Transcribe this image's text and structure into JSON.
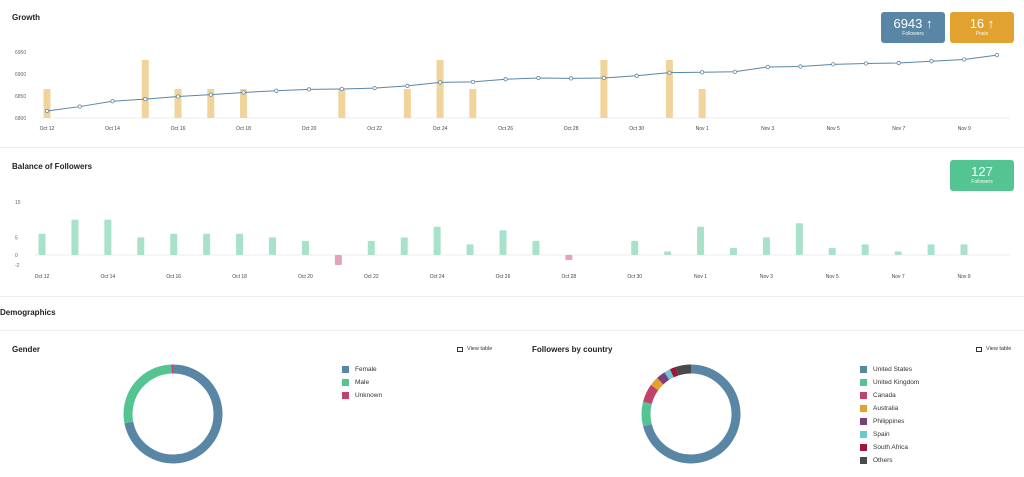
{
  "growth": {
    "title": "Growth",
    "followers_badge": {
      "value": "6943",
      "label": "Followers",
      "arrow": "↑",
      "color": "#5a86a5"
    },
    "posts_badge": {
      "value": "16",
      "label": "Posts",
      "arrow": "↑",
      "color": "#e1a22f"
    }
  },
  "balance": {
    "title": "Balance of Followers",
    "badge": {
      "value": "127",
      "label": "Followers",
      "color": "#55c493"
    }
  },
  "demographics": {
    "title": "Demographics"
  },
  "gender": {
    "title": "Gender",
    "view_table": "View table",
    "legend": [
      {
        "label": "Female",
        "color": "#5a86a5"
      },
      {
        "label": "Male",
        "color": "#55c493"
      },
      {
        "label": "Unknown",
        "color": "#c0436c"
      }
    ]
  },
  "country": {
    "title": "Followers by country",
    "view_table": "View table",
    "legend": [
      {
        "label": "United States",
        "color": "#5a86a5"
      },
      {
        "label": "United Kingdom",
        "color": "#55c493"
      },
      {
        "label": "Canada",
        "color": "#c0436c"
      },
      {
        "label": "Australia",
        "color": "#e1a22f"
      },
      {
        "label": "Philippines",
        "color": "#7b3f7e"
      },
      {
        "label": "Spain",
        "color": "#6cc7cf"
      },
      {
        "label": "South Africa",
        "color": "#a0163a"
      },
      {
        "label": "Others",
        "color": "#4a4a4a"
      }
    ]
  },
  "chart_data": [
    {
      "type": "line",
      "title": "Growth",
      "x": [
        "Oct 12",
        "Oct 13",
        "Oct 14",
        "Oct 15",
        "Oct 16",
        "Oct 17",
        "Oct 18",
        "Oct 19",
        "Oct 20",
        "Oct 21",
        "Oct 22",
        "Oct 23",
        "Oct 24",
        "Oct 25",
        "Oct 26",
        "Oct 27",
        "Oct 28",
        "Oct 29",
        "Oct 30",
        "Oct 31",
        "Nov 1",
        "Nov 2",
        "Nov 3",
        "Nov 4",
        "Nov 5",
        "Nov 6",
        "Nov 7",
        "Nov 8",
        "Nov 9",
        "Nov 10"
      ],
      "xticks": [
        "Oct 12",
        "Oct 14",
        "Oct 16",
        "Oct 18",
        "Oct 20",
        "Oct 22",
        "Oct 24",
        "Oct 26",
        "Oct 28",
        "Oct 30",
        "Nov 1",
        "Nov 3",
        "Nov 5",
        "Nov 7",
        "Nov 9"
      ],
      "yticks": [
        "6800",
        "6850",
        "6900",
        "6950"
      ],
      "ylim": [
        6800,
        6950
      ],
      "series": [
        {
          "kind": "line",
          "color": "#5a86a5",
          "values": [
            6816,
            6826,
            6838,
            6843,
            6849,
            6853,
            6858,
            6862,
            6865,
            6866,
            6868,
            6873,
            6881,
            6882,
            6888,
            6891,
            6890,
            6891,
            6896,
            6903,
            6904,
            6905,
            6916,
            6917,
            6922,
            6924,
            6925,
            6929,
            6933,
            6943
          ]
        },
        {
          "kind": "bar",
          "color": "#f0d49c",
          "scale_max": 6,
          "values": [
            3,
            0,
            0,
            6,
            3,
            3,
            3,
            0,
            0,
            3,
            0,
            3,
            6,
            3,
            0,
            0,
            0,
            6,
            0,
            6,
            3,
            0,
            0,
            0,
            0,
            0,
            0,
            0,
            0,
            0
          ]
        }
      ]
    },
    {
      "type": "bar",
      "title": "Balance of Followers",
      "categories": [
        "Oct 12",
        "Oct 13",
        "Oct 14",
        "Oct 15",
        "Oct 16",
        "Oct 17",
        "Oct 18",
        "Oct 19",
        "Oct 20",
        "Oct 21",
        "Oct 22",
        "Oct 23",
        "Oct 24",
        "Oct 25",
        "Oct 26",
        "Oct 27",
        "Oct 28",
        "Oct 29",
        "Oct 30",
        "Oct 31",
        "Nov 1",
        "Nov 2",
        "Nov 3",
        "Nov 4",
        "Nov 5",
        "Nov 6",
        "Nov 7",
        "Nov 8",
        "Nov 9"
      ],
      "xticks": [
        "Oct 12",
        "Oct 14",
        "Oct 16",
        "Oct 18",
        "Oct 20",
        "Oct 22",
        "Oct 24",
        "Oct 26",
        "Oct 28",
        "Oct 30",
        "Nov 1",
        "Nov 3",
        "Nov 5",
        "Nov 7",
        "Nov 9"
      ],
      "values": [
        6,
        10,
        10,
        5,
        6,
        6,
        6,
        5,
        4,
        -2,
        4,
        5,
        8,
        3,
        7,
        4,
        -1,
        0,
        4,
        1,
        8,
        2,
        5,
        9,
        2,
        3,
        1,
        3,
        3
      ],
      "yticks": [
        "15",
        "5",
        "0",
        "-2"
      ],
      "ylim": [
        -2,
        15
      ],
      "pos_color": "#a8e2cb",
      "neg_color": "#e3a3b7"
    },
    {
      "type": "pie",
      "title": "Gender",
      "labels": [
        "Female",
        "Male",
        "Unknown"
      ],
      "values": [
        72,
        27.5,
        0.5
      ],
      "colors": [
        "#5a86a5",
        "#55c493",
        "#c0436c"
      ]
    },
    {
      "type": "pie",
      "title": "Followers by country",
      "labels": [
        "United States",
        "United Kingdom",
        "Canada",
        "Australia",
        "Philippines",
        "Spain",
        "South Africa",
        "Others"
      ],
      "values": [
        71,
        8,
        6,
        3,
        3,
        2,
        2,
        5
      ],
      "colors": [
        "#5a86a5",
        "#55c493",
        "#c0436c",
        "#e1a22f",
        "#7b3f7e",
        "#6cc7cf",
        "#a0163a",
        "#4a4a4a"
      ]
    }
  ]
}
